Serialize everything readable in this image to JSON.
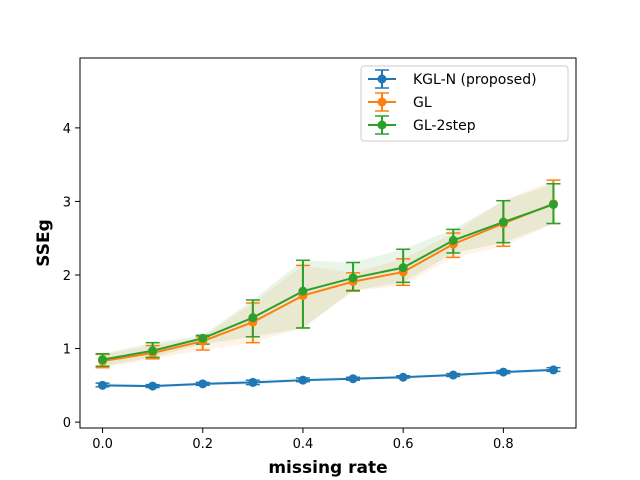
{
  "chart_data": {
    "type": "line",
    "title": "",
    "xlabel": "missing rate",
    "ylabel": "SSEg",
    "xlim": [
      -0.045,
      0.945
    ],
    "ylim": [
      -0.08,
      4.95
    ],
    "x": [
      0.0,
      0.1,
      0.2,
      0.3,
      0.4,
      0.5,
      0.6,
      0.7,
      0.8,
      0.9
    ],
    "xticks": [
      0.0,
      0.2,
      0.4,
      0.6,
      0.8
    ],
    "xtick_labels": [
      "0.0",
      "0.2",
      "0.4",
      "0.6",
      "0.8"
    ],
    "yticks": [
      0,
      1,
      2,
      3,
      4
    ],
    "ytick_labels": [
      "0",
      "1",
      "2",
      "3",
      "4"
    ],
    "grid": false,
    "legend_position": "top-right",
    "series": [
      {
        "name": "KGL-N (proposed)",
        "color": "#1f77b4",
        "values": [
          0.5,
          0.49,
          0.52,
          0.54,
          0.57,
          0.59,
          0.61,
          0.64,
          0.68,
          0.71
        ],
        "err_low": [
          0.48,
          0.47,
          0.5,
          0.51,
          0.55,
          0.57,
          0.6,
          0.62,
          0.66,
          0.69
        ],
        "err_high": [
          0.53,
          0.51,
          0.54,
          0.57,
          0.6,
          0.61,
          0.63,
          0.66,
          0.7,
          0.74
        ]
      },
      {
        "name": "GL",
        "color": "#ff7f0e",
        "values": [
          0.83,
          0.94,
          1.1,
          1.36,
          1.72,
          1.91,
          2.04,
          2.42,
          2.7,
          2.97
        ],
        "err_low": [
          0.74,
          0.86,
          0.98,
          1.08,
          1.28,
          1.78,
          1.86,
          2.24,
          2.39,
          2.7
        ],
        "err_high": [
          0.92,
          1.04,
          1.16,
          1.62,
          2.13,
          2.03,
          2.22,
          2.57,
          3.01,
          3.29
        ]
      },
      {
        "name": "GL-2step",
        "color": "#2ca02c",
        "values": [
          0.85,
          0.97,
          1.14,
          1.42,
          1.78,
          1.96,
          2.1,
          2.47,
          2.72,
          2.96
        ],
        "err_low": [
          0.76,
          0.88,
          1.06,
          1.16,
          1.28,
          1.79,
          1.9,
          2.3,
          2.44,
          2.7
        ],
        "err_high": [
          0.93,
          1.08,
          1.18,
          1.66,
          2.2,
          2.17,
          2.35,
          2.62,
          3.01,
          3.24
        ]
      }
    ]
  }
}
